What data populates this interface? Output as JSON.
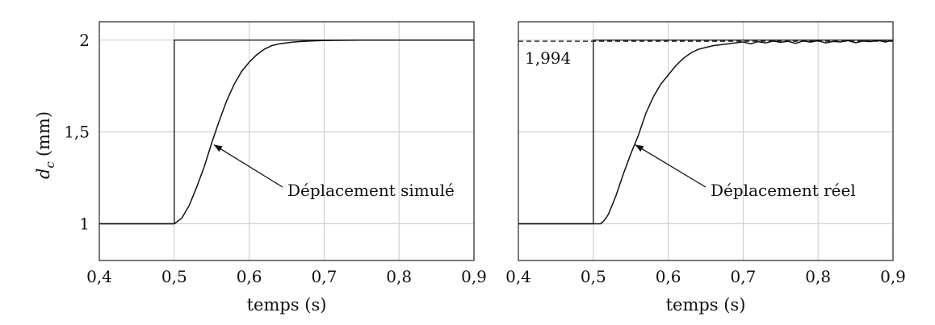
{
  "chart_data": [
    {
      "type": "line",
      "xlabel": "temps (s)",
      "ylabel": "d",
      "ylabel_sub": "c",
      "ylabel_unit": "(mm)",
      "xlim": [
        0.4,
        0.9
      ],
      "ylim": [
        0.8,
        2.1
      ],
      "xticks": [
        0.4,
        0.5,
        0.6,
        0.7,
        0.8,
        0.9
      ],
      "xtick_labels": [
        "0,4",
        "0,5",
        "0,6",
        "0,7",
        "0,8",
        "0,9"
      ],
      "yticks": [
        1,
        1.5,
        2
      ],
      "ytick_labels": [
        "1",
        "1,5",
        "2"
      ],
      "grid": true,
      "series": [
        {
          "role": "input-step",
          "x": [
            0.4,
            0.5,
            0.5,
            0.9
          ],
          "y": [
            1,
            1,
            2,
            2
          ]
        },
        {
          "role": "response",
          "x": [
            0.4,
            0.5,
            0.51,
            0.52,
            0.53,
            0.54,
            0.55,
            0.56,
            0.57,
            0.58,
            0.59,
            0.6,
            0.61,
            0.62,
            0.63,
            0.64,
            0.65,
            0.66,
            0.67,
            0.68,
            0.69,
            0.7,
            0.72,
            0.75,
            0.8,
            0.9
          ],
          "y": [
            1,
            1,
            1.03,
            1.1,
            1.2,
            1.31,
            1.44,
            1.56,
            1.67,
            1.76,
            1.83,
            1.88,
            1.92,
            1.95,
            1.97,
            1.98,
            1.985,
            1.99,
            1.993,
            1.995,
            1.997,
            1.998,
            1.999,
            2,
            2,
            2
          ]
        }
      ],
      "annotation": {
        "text": "Déplacement simulé",
        "target_x": 0.553,
        "target_y": 1.43
      }
    },
    {
      "type": "line",
      "xlabel": "temps (s)",
      "xlim": [
        0.4,
        0.9
      ],
      "ylim": [
        0.8,
        2.1
      ],
      "xticks": [
        0.4,
        0.5,
        0.6,
        0.7,
        0.8,
        0.9
      ],
      "xtick_labels": [
        "0,4",
        "0,5",
        "0,6",
        "0,7",
        "0,8",
        "0,9"
      ],
      "yticks": [
        1,
        1.5,
        2
      ],
      "grid": true,
      "reference_line": {
        "y": 1.994,
        "label": "1,994"
      },
      "series": [
        {
          "role": "input-step",
          "x": [
            0.4,
            0.5,
            0.5,
            0.9
          ],
          "y": [
            1,
            1,
            2,
            2
          ]
        },
        {
          "role": "response",
          "x": [
            0.4,
            0.5,
            0.51,
            0.515,
            0.52,
            0.53,
            0.54,
            0.55,
            0.56,
            0.57,
            0.58,
            0.59,
            0.6,
            0.61,
            0.62,
            0.63,
            0.64,
            0.65,
            0.66,
            0.67,
            0.68,
            0.69,
            0.7,
            0.71,
            0.72,
            0.73,
            0.74,
            0.75,
            0.76,
            0.77,
            0.78,
            0.79,
            0.8,
            0.81,
            0.82,
            0.83,
            0.84,
            0.85,
            0.86,
            0.87,
            0.88,
            0.89,
            0.9
          ],
          "y": [
            1,
            1,
            1.0,
            1.02,
            1.05,
            1.15,
            1.27,
            1.38,
            1.48,
            1.6,
            1.69,
            1.76,
            1.81,
            1.86,
            1.9,
            1.93,
            1.95,
            1.96,
            1.97,
            1.975,
            1.98,
            1.985,
            1.99,
            1.98,
            1.992,
            1.985,
            1.995,
            1.988,
            1.994,
            1.982,
            1.996,
            1.989,
            1.997,
            1.985,
            1.993,
            1.99,
            1.998,
            1.986,
            1.995,
            1.992,
            1.999,
            1.99,
            2.0
          ]
        }
      ],
      "annotation": {
        "text": "Déplacement réel",
        "target_x": 0.556,
        "target_y": 1.43
      }
    }
  ]
}
